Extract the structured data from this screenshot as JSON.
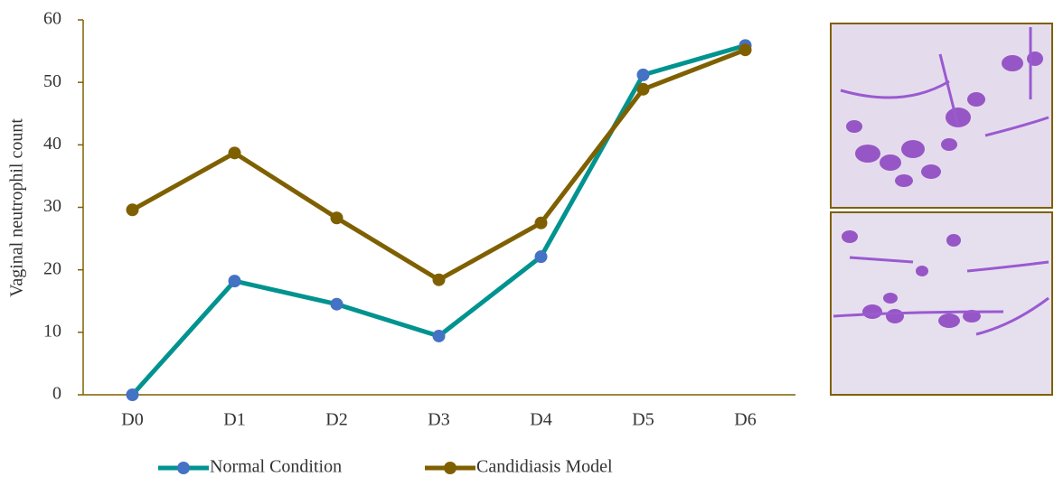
{
  "chart_data": {
    "type": "line",
    "y_label": "Vaginal neutrophil count",
    "categories": [
      "D0",
      "D1",
      "D2",
      "D3",
      "D4",
      "D5",
      "D6"
    ],
    "series": [
      {
        "name": "Normal Condition",
        "color": "#00938f",
        "marker_color": "#4472c4",
        "values": [
          0,
          18.2,
          14.5,
          9.4,
          22.1,
          51.2,
          55.9
        ]
      },
      {
        "name": "Candidiasis Model",
        "color": "#7f6000",
        "marker_color": "#7f6000",
        "values": [
          29.6,
          38.7,
          28.3,
          18.4,
          27.5,
          48.9,
          55.2
        ]
      }
    ],
    "ylim": [
      0,
      60
    ],
    "yticks": [
      0,
      10,
      20,
      30,
      40,
      50,
      60
    ],
    "axis_color": "#7f6000",
    "grid": false
  }
}
